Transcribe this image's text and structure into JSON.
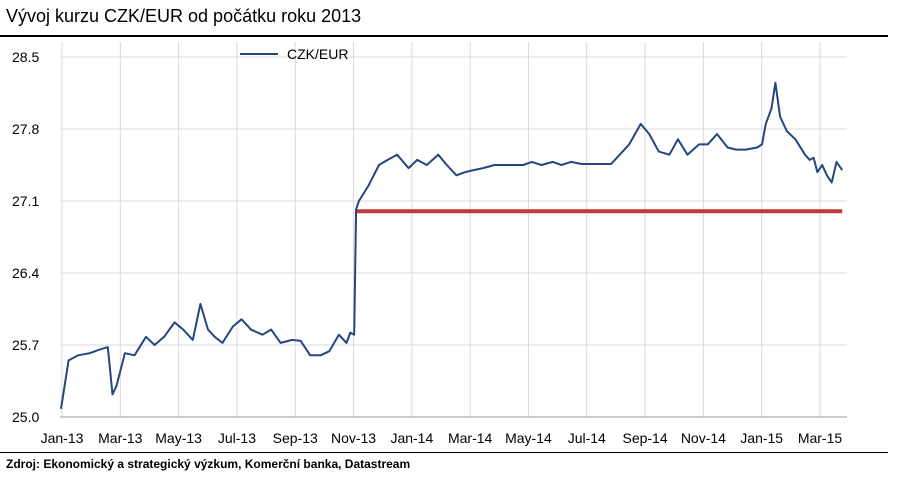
{
  "title": "Vývoj kurzu CZK/EUR od počátku roku 2013",
  "source": "Zdroj: Ekonomický a strategický výzkum, Komerční banka, Datastream",
  "colors": {
    "series": "#23477e",
    "floor": "#c0393b",
    "grid": "#d9d9d9"
  },
  "chart_data": {
    "type": "line",
    "title": "Vývoj kurzu CZK/EUR od počátku roku 2013",
    "xlabel": "",
    "ylabel": "",
    "ylim": [
      25.0,
      28.5
    ],
    "yticks": [
      "28.5",
      "27.8",
      "27.1",
      "26.4",
      "25.7",
      "25.0"
    ],
    "xticks": [
      "Jan-13",
      "Mar-13",
      "May-13",
      "Jul-13",
      "Sep-13",
      "Nov-13",
      "Jan-14",
      "Mar-14",
      "May-14",
      "Jul-14",
      "Sep-14",
      "Nov-14",
      "Jan-15",
      "Mar-15"
    ],
    "grid": true,
    "legend": "top-left",
    "series": [
      {
        "name": "CZK/EUR",
        "x": [
          "2013-01-02",
          "2013-01-10",
          "2013-01-20",
          "2013-02-01",
          "2013-02-10",
          "2013-02-20",
          "2013-02-25",
          "2013-03-01",
          "2013-03-10",
          "2013-03-20",
          "2013-04-01",
          "2013-04-10",
          "2013-04-20",
          "2013-05-01",
          "2013-05-10",
          "2013-05-20",
          "2013-05-28",
          "2013-06-05",
          "2013-06-12",
          "2013-06-20",
          "2013-07-01",
          "2013-07-10",
          "2013-07-20",
          "2013-08-01",
          "2013-08-10",
          "2013-08-20",
          "2013-09-01",
          "2013-09-10",
          "2013-09-20",
          "2013-10-01",
          "2013-10-10",
          "2013-10-20",
          "2013-10-28",
          "2013-11-01",
          "2013-11-05",
          "2013-11-07",
          "2013-11-10",
          "2013-11-20",
          "2013-12-01",
          "2013-12-10",
          "2013-12-20",
          "2014-01-01",
          "2014-01-10",
          "2014-01-20",
          "2014-02-01",
          "2014-02-10",
          "2014-02-20",
          "2014-03-01",
          "2014-03-10",
          "2014-03-20",
          "2014-04-01",
          "2014-04-10",
          "2014-04-20",
          "2014-05-01",
          "2014-05-10",
          "2014-05-20",
          "2014-06-01",
          "2014-06-10",
          "2014-06-20",
          "2014-07-01",
          "2014-07-10",
          "2014-07-20",
          "2014-08-01",
          "2014-08-10",
          "2014-08-20",
          "2014-09-01",
          "2014-09-10",
          "2014-09-20",
          "2014-10-01",
          "2014-10-10",
          "2014-10-20",
          "2014-11-01",
          "2014-11-10",
          "2014-11-20",
          "2014-12-01",
          "2014-12-10",
          "2014-12-20",
          "2015-01-01",
          "2015-01-06",
          "2015-01-10",
          "2015-01-16",
          "2015-01-20",
          "2015-01-25",
          "2015-02-01",
          "2015-02-10",
          "2015-02-20",
          "2015-02-25",
          "2015-03-01",
          "2015-03-05",
          "2015-03-10",
          "2015-03-15",
          "2015-03-20",
          "2015-03-25",
          "2015-03-31"
        ],
        "values": [
          25.08,
          25.55,
          25.6,
          25.62,
          25.65,
          25.68,
          25.22,
          25.3,
          25.62,
          25.6,
          25.78,
          25.7,
          25.78,
          25.92,
          25.85,
          25.75,
          26.1,
          25.85,
          25.78,
          25.72,
          25.88,
          25.95,
          25.85,
          25.8,
          25.85,
          25.72,
          25.75,
          25.74,
          25.6,
          25.6,
          25.64,
          25.8,
          25.72,
          25.82,
          25.8,
          27.02,
          27.1,
          27.25,
          27.45,
          27.5,
          27.55,
          27.42,
          27.5,
          27.45,
          27.55,
          27.45,
          27.35,
          27.38,
          27.4,
          27.42,
          27.45,
          27.45,
          27.45,
          27.45,
          27.48,
          27.45,
          27.48,
          27.45,
          27.48,
          27.46,
          27.46,
          27.46,
          27.46,
          27.55,
          27.65,
          27.85,
          27.75,
          27.58,
          27.55,
          27.7,
          27.55,
          27.65,
          27.65,
          27.75,
          27.62,
          27.6,
          27.6,
          27.62,
          27.65,
          27.85,
          28.0,
          28.25,
          27.92,
          27.78,
          27.7,
          27.55,
          27.5,
          27.52,
          27.38,
          27.45,
          27.35,
          27.28,
          27.48,
          27.4
        ]
      },
      {
        "name": "",
        "x": [
          "2013-11-07",
          "2015-03-31"
        ],
        "values": [
          27.0,
          27.0
        ]
      }
    ]
  }
}
